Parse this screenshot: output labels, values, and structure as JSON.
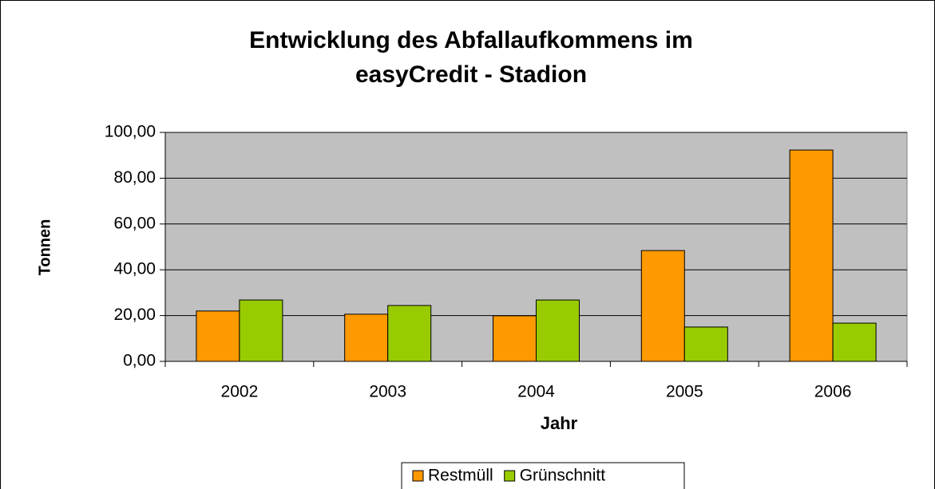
{
  "chart_data": {
    "type": "bar",
    "title": [
      "Entwicklung des Abfallaufkommens im",
      "easyCredit - Stadion"
    ],
    "xlabel": "Jahr",
    "ylabel": "Tonnen",
    "categories": [
      "2002",
      "2003",
      "2004",
      "2005",
      "2006"
    ],
    "series": [
      {
        "name": "Restmüll",
        "color": "#ff9900",
        "values": [
          22.0,
          20.6,
          19.9,
          48.4,
          92.3
        ]
      },
      {
        "name": "Grünschnitt",
        "color": "#99cc00",
        "values": [
          26.8,
          24.4,
          26.8,
          15.0,
          16.7
        ]
      }
    ],
    "ylim": [
      0,
      100
    ],
    "yticks": [
      {
        "value": 0,
        "label": "0,00"
      },
      {
        "value": 20,
        "label": "20,00"
      },
      {
        "value": 40,
        "label": "40,00"
      },
      {
        "value": 60,
        "label": "60,00"
      },
      {
        "value": 80,
        "label": "80,00"
      },
      {
        "value": 100,
        "label": "100,00"
      }
    ],
    "grid": true,
    "legend": "bottom",
    "plot_background": "#c0c0c0"
  }
}
